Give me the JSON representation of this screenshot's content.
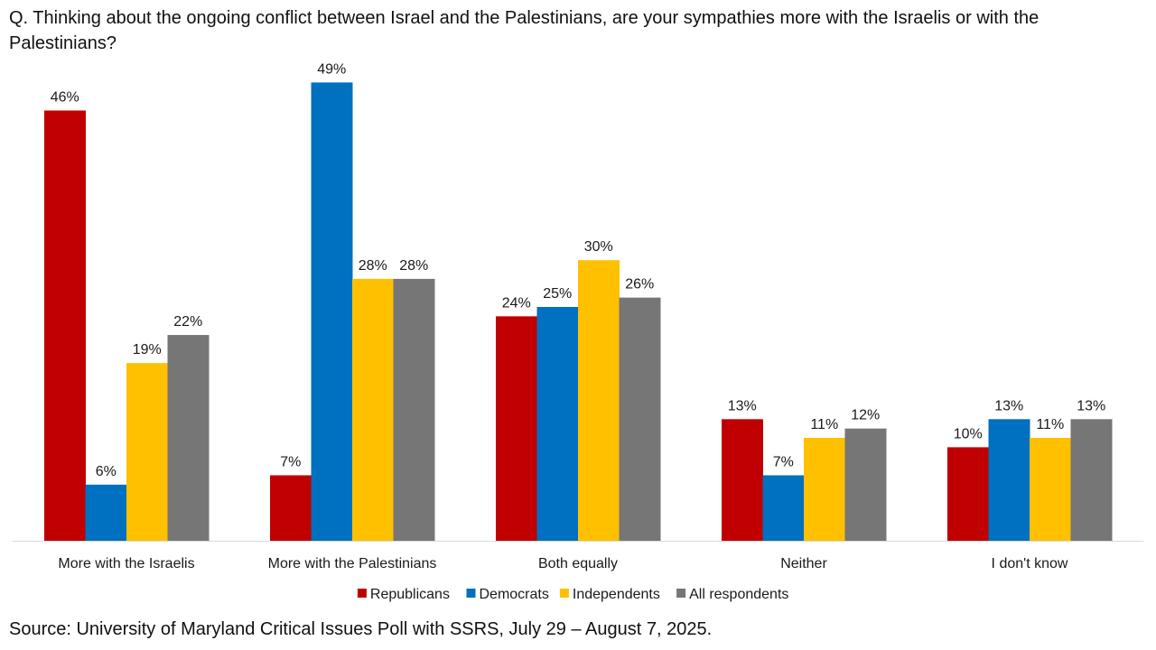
{
  "question": "Q. Thinking about the ongoing conflict between Israel and the Palestinians, are your sympathies more with the Israelis or with the Palestinians?",
  "source": "Source: University of Maryland Critical Issues Poll with SSRS, July 29 – August 7, 2025.",
  "chart_data": {
    "type": "bar",
    "title": "Q. Thinking about the ongoing conflict between Israel and the Palestinians, are your sympathies more with the Israelis or with the Palestinians?",
    "xlabel": "",
    "ylabel": "",
    "ylim": [
      0,
      50
    ],
    "grid": false,
    "legend_position": "bottom",
    "categories": [
      "More with the Israelis",
      "More with the Palestinians",
      "Both equally",
      "Neither",
      "I don't know"
    ],
    "series": [
      {
        "name": "Republicans",
        "color": "#C00000",
        "values": [
          46,
          7,
          24,
          13,
          10
        ]
      },
      {
        "name": "Democrats",
        "color": "#0070C0",
        "values": [
          6,
          49,
          25,
          7,
          13
        ]
      },
      {
        "name": "Independents",
        "color": "#FFC000",
        "values": [
          19,
          28,
          30,
          11,
          11
        ]
      },
      {
        "name": "All respondents",
        "color": "#767676",
        "values": [
          22,
          28,
          26,
          12,
          13
        ]
      }
    ],
    "value_suffix": "%"
  }
}
